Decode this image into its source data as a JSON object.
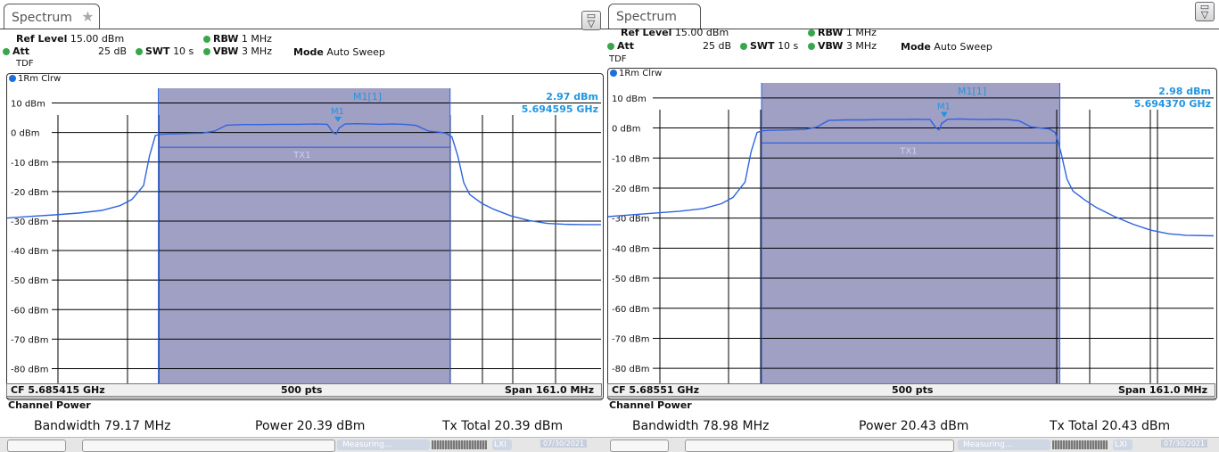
{
  "panels": [
    {
      "tab_title": "Spectrum",
      "tab_icon": "star-icon",
      "ref_level_label": "Ref Level",
      "ref_level_value": "15.00 dBm",
      "att_label": "Att",
      "att_value": "25 dB",
      "swt_label": "SWT",
      "swt_value": "10 s",
      "rbw_label": "RBW",
      "rbw_value": "1 MHz",
      "vbw_label": "VBW",
      "vbw_value": "3 MHz",
      "mode_label": "Mode",
      "mode_value": "Auto Sweep",
      "tdf": "TDF",
      "trace_label": "1Rm Clrw",
      "marker_id": "M1[1]",
      "marker_level": "2.97 dBm",
      "marker_freq": "5.694595 GHz",
      "marker_name": "M1",
      "channel_label": "TX1",
      "cf": "CF 5.685415 GHz",
      "pts": "500 pts",
      "span": "Span 161.0 MHz",
      "channel_power_title": "Channel Power",
      "bandwidth": "Bandwidth 79.17 MHz",
      "power": "Power 20.39 dBm",
      "tx_total": "Tx Total 20.39 dBm"
    },
    {
      "tab_title": "Spectrum",
      "ref_level_label": "Ref Level",
      "ref_level_value": "15.00 dBm",
      "att_label": "Att",
      "att_value": "25 dB",
      "swt_label": "SWT",
      "swt_value": "10 s",
      "rbw_label": "RBW",
      "rbw_value": "1 MHz",
      "vbw_label": "VBW",
      "vbw_value": "3 MHz",
      "mode_label": "Mode",
      "mode_value": "Auto Sweep",
      "tdf": "TDF",
      "trace_label": "1Rm Clrw",
      "marker_id": "M1[1]",
      "marker_level": "2.98 dBm",
      "marker_freq": "5.694370 GHz",
      "marker_name": "M1",
      "channel_label": "TX1",
      "cf": "CF 5.68551 GHz",
      "pts": "500 pts",
      "span": "Span 161.0 MHz",
      "channel_power_title": "Channel Power",
      "bandwidth": "Bandwidth 78.98 MHz",
      "power": "Power 20.43 dBm",
      "tx_total": "Tx Total 20.43 dBm"
    }
  ],
  "status_bar": {
    "measuring_label": "Measuring...",
    "date": "07/30/2021"
  },
  "colors": {
    "trace": "#2f63e0",
    "channel_shade": "#a09fc4",
    "marker": "#2196e0",
    "grid": "#000000",
    "status_dot": "#3aa64c"
  },
  "chart_data": [
    {
      "type": "line",
      "title": "",
      "ylabel": "",
      "y_tick_labels": [
        "10 dBm",
        "0 dBm",
        "-10 dBm",
        "-20 dBm",
        "-30 dBm",
        "-40 dBm",
        "-50 dBm",
        "-60 dBm",
        "-70 dBm",
        "-80 dBm"
      ],
      "y_ticks": [
        10,
        0,
        -10,
        -20,
        -30,
        -40,
        -50,
        -60,
        -70,
        -80
      ],
      "ylim": [
        -85,
        15
      ],
      "xlim_mhz": [
        5604.915,
        5765.915
      ],
      "channel_band_mhz": [
        5645.9,
        5725.0
      ],
      "channel_power_level_dbm": -5,
      "marker": {
        "freq_mhz": 5694.595,
        "level_dbm": 2.97
      },
      "series": [
        {
          "x_mhz": [
            5604.9,
            5611.3,
            5617.8,
            5624.2,
            5630.6,
            5635.5,
            5638.7,
            5641.9,
            5643.5,
            5645.1,
            5646.7,
            5648.3,
            5651.5,
            5654.7,
            5657.9,
            5661.2,
            5664.4,
            5669.2,
            5674.0,
            5678.9,
            5683.7,
            5688.5,
            5691.7,
            5693.3,
            5694.1,
            5694.9,
            5696.5,
            5699.8,
            5703.0,
            5706.2,
            5709.4,
            5712.6,
            5715.8,
            5719.1,
            5720.7,
            5722.3,
            5723.9,
            5725.5,
            5727.1,
            5728.7,
            5730.3,
            5733.6,
            5736.8,
            5741.6,
            5746.4,
            5751.3,
            5756.1,
            5760.9,
            5765.9
          ],
          "y_dbm": [
            -29,
            -28.4,
            -27.9,
            -27.3,
            -26.4,
            -24.8,
            -22.7,
            -18,
            -8,
            -1,
            -0.6,
            -0.5,
            -0.4,
            -0.3,
            -0.2,
            0.5,
            2.5,
            2.7,
            2.7,
            2.8,
            2.8,
            2.9,
            2.8,
            0,
            -0.5,
            1.5,
            2.9,
            3.0,
            2.9,
            2.8,
            2.9,
            2.8,
            2.4,
            0.5,
            0.3,
            0.1,
            -0.3,
            -1.5,
            -8,
            -17,
            -21,
            -24,
            -26,
            -28.3,
            -29.8,
            -30.8,
            -31.1,
            -31.2,
            -31.2
          ]
        }
      ]
    },
    {
      "type": "line",
      "title": "",
      "ylabel": "",
      "y_tick_labels": [
        "10 dBm",
        "0 dBm",
        "-10 dBm",
        "-20 dBm",
        "-30 dBm",
        "-40 dBm",
        "-50 dBm",
        "-60 dBm",
        "-70 dBm",
        "-80 dBm"
      ],
      "y_ticks": [
        10,
        0,
        -10,
        -20,
        -30,
        -40,
        -50,
        -60,
        -70,
        -80
      ],
      "ylim": [
        -85,
        15
      ],
      "xlim_mhz": [
        5605.01,
        5766.01
      ],
      "channel_band_mhz": [
        5645.8,
        5725.1
      ],
      "channel_power_level_dbm": -5,
      "marker": {
        "freq_mhz": 5694.37,
        "level_dbm": 2.98
      },
      "series": [
        {
          "x_mhz": [
            5605.0,
            5611.3,
            5617.6,
            5624.0,
            5630.3,
            5635.1,
            5638.2,
            5641.4,
            5643.0,
            5644.6,
            5646.2,
            5647.8,
            5651.0,
            5654.1,
            5657.3,
            5660.5,
            5663.6,
            5668.4,
            5673.1,
            5677.9,
            5682.6,
            5687.4,
            5690.6,
            5692.2,
            5693.0,
            5693.7,
            5695.3,
            5698.5,
            5701.7,
            5704.8,
            5708.0,
            5711.2,
            5714.3,
            5717.5,
            5719.1,
            5720.7,
            5722.3,
            5723.9,
            5725.4,
            5727.0,
            5728.6,
            5731.8,
            5734.9,
            5739.7,
            5744.5,
            5749.2,
            5754.0,
            5758.7,
            5766.0
          ],
          "y_dbm": [
            -29.5,
            -28.9,
            -28.3,
            -27.7,
            -26.8,
            -25.2,
            -23.1,
            -18,
            -8,
            -1.5,
            -0.9,
            -0.8,
            -0.7,
            -0.6,
            -0.5,
            0.3,
            2.5,
            2.7,
            2.7,
            2.8,
            2.8,
            2.9,
            2.8,
            0,
            -0.6,
            1.5,
            2.9,
            3.0,
            2.9,
            2.8,
            2.9,
            2.8,
            2.4,
            0.3,
            0.1,
            -0.1,
            -0.3,
            -1.5,
            -8,
            -17,
            -21,
            -24,
            -26.5,
            -29.5,
            -32,
            -34,
            -35.2,
            -35.7,
            -35.9
          ]
        }
      ]
    }
  ]
}
